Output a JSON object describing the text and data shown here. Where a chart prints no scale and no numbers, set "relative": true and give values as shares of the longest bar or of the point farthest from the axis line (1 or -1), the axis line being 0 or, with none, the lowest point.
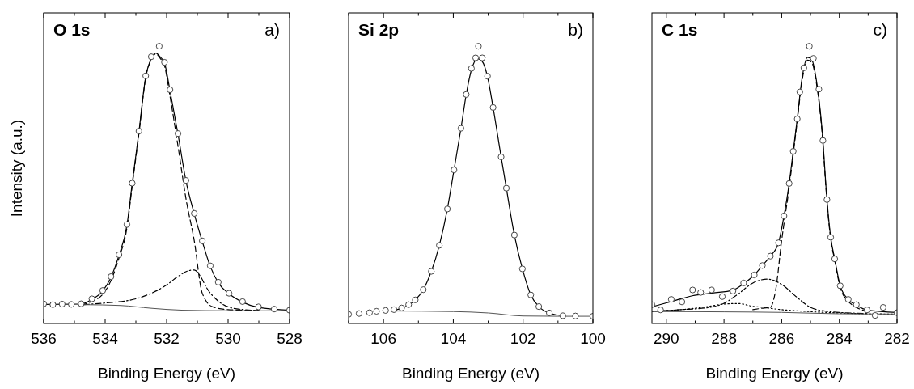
{
  "chart_data": [
    {
      "type": "line",
      "title": "O 1s",
      "ylabel": "Intensity (a.u.)",
      "xlabel": "Binding Energy (eV)",
      "annotations": [
        "a)"
      ],
      "relative": true,
      "xlim": [
        536,
        528
      ],
      "xticks": [
        536,
        {
          "value": 535,
          "label": null
        },
        534,
        {
          "value": 533,
          "label": null
        },
        532,
        {
          "value": 531,
          "label": null
        },
        530,
        {
          "value": 529,
          "label": null
        },
        528
      ],
      "series": [
        {
          "type": "scatter",
          "marker": "circle",
          "color": "#333333",
          "x": [
            536,
            535.7,
            535.4,
            535.1,
            534.78,
            534.43,
            534.08,
            533.81,
            533.55,
            533.29,
            533.12,
            532.9,
            532.68,
            532.5,
            532.24,
            532.07,
            531.89,
            531.63,
            531.37,
            531.1,
            530.84,
            530.58,
            530.32,
            529.97,
            529.53,
            529.01,
            528.5,
            528
          ],
          "values": [
            0.071,
            0.068,
            0.07,
            0.069,
            0.071,
            0.089,
            0.119,
            0.169,
            0.248,
            0.357,
            0.506,
            0.694,
            0.893,
            0.962,
            1.0,
            0.942,
            0.843,
            0.685,
            0.516,
            0.397,
            0.298,
            0.208,
            0.149,
            0.109,
            0.079,
            0.06,
            0.052,
            0.048
          ]
        },
        {
          "type": "line",
          "line_style": "solid",
          "color": "#000000",
          "x": [
            536,
            534.78,
            534.43,
            534.08,
            533.81,
            533.55,
            533.29,
            533.12,
            532.9,
            532.68,
            532.5,
            532.35,
            532.2,
            532.07,
            531.89,
            531.63,
            531.37,
            531.1,
            530.84,
            530.58,
            530.32,
            529.97,
            529.53,
            529.01,
            528
          ],
          "values": [
            0.069,
            0.07,
            0.087,
            0.117,
            0.167,
            0.246,
            0.355,
            0.504,
            0.692,
            0.89,
            0.955,
            0.975,
            0.96,
            0.94,
            0.84,
            0.683,
            0.514,
            0.395,
            0.296,
            0.206,
            0.147,
            0.107,
            0.077,
            0.058,
            0.048
          ]
        },
        {
          "type": "line",
          "line_style": "dashed",
          "color": "#000000",
          "x": [
            534.78,
            534.43,
            534.08,
            533.81,
            533.55,
            533.29,
            533.12,
            532.9,
            532.68,
            532.5,
            532.35,
            532.2,
            532.07,
            531.89,
            531.63,
            531.37,
            531.1,
            530.84,
            530.5,
            530,
            529.5,
            529
          ],
          "values": [
            0.066,
            0.08,
            0.105,
            0.155,
            0.236,
            0.346,
            0.496,
            0.686,
            0.886,
            0.952,
            0.972,
            0.955,
            0.93,
            0.82,
            0.64,
            0.45,
            0.298,
            0.109,
            0.06,
            0.05,
            0.048,
            0.047
          ]
        },
        {
          "type": "line",
          "line_style": "dashdot",
          "color": "#000000",
          "x": [
            534.7,
            534,
            533,
            532.5,
            532,
            531.6,
            531.3,
            531.1,
            530.9,
            530.7,
            530.3,
            530,
            529.5,
            529
          ],
          "values": [
            0.068,
            0.074,
            0.089,
            0.109,
            0.139,
            0.172,
            0.19,
            0.193,
            0.17,
            0.129,
            0.079,
            0.06,
            0.05,
            0.047
          ]
        },
        {
          "type": "line",
          "line_style": "solid",
          "color": "#555555",
          "x": [
            534.7,
            533.5,
            532.5,
            531.5,
            530,
            528
          ],
          "values": [
            0.068,
            0.065,
            0.055,
            0.048,
            0.046,
            0.046
          ]
        }
      ]
    },
    {
      "type": "line",
      "title": "Si 2p",
      "xlabel": "Binding Energy (eV)",
      "annotations": [
        "b)"
      ],
      "relative": true,
      "xlim": [
        107,
        100
      ],
      "xticks": [
        {
          "value": 107,
          "label": null
        },
        106,
        {
          "value": 105,
          "label": null
        },
        104,
        {
          "value": 103,
          "label": null
        },
        102,
        {
          "value": 101,
          "label": null
        },
        100
      ],
      "series": [
        {
          "type": "scatter",
          "marker": "circle",
          "color": "#333333",
          "x": [
            107,
            106.7,
            106.4,
            106.2,
            105.94,
            105.7,
            105.48,
            105.28,
            105.09,
            104.86,
            104.63,
            104.4,
            104.17,
            103.98,
            103.78,
            103.63,
            103.48,
            103.36,
            103.28,
            103.17,
            103.02,
            102.86,
            102.63,
            102.48,
            102.25,
            102.02,
            101.78,
            101.55,
            101.25,
            100.86,
            100.5,
            100
          ],
          "values": [
            0.033,
            0.036,
            0.039,
            0.044,
            0.047,
            0.05,
            0.056,
            0.068,
            0.085,
            0.122,
            0.188,
            0.282,
            0.413,
            0.554,
            0.704,
            0.826,
            0.92,
            0.958,
            1.0,
            0.958,
            0.892,
            0.779,
            0.601,
            0.488,
            0.319,
            0.197,
            0.103,
            0.061,
            0.038,
            0.028,
            0.027,
            0.026
          ]
        },
        {
          "type": "line",
          "line_style": "solid",
          "color": "#000000",
          "x": [
            105.7,
            105.48,
            105.28,
            105.09,
            104.86,
            104.63,
            104.4,
            104.17,
            103.98,
            103.78,
            103.63,
            103.48,
            103.3,
            103.17,
            103.02,
            102.86,
            102.63,
            102.48,
            102.25,
            102.02,
            101.78,
            101.55,
            101.25,
            100.86
          ],
          "values": [
            0.048,
            0.055,
            0.067,
            0.085,
            0.122,
            0.188,
            0.282,
            0.413,
            0.554,
            0.704,
            0.826,
            0.915,
            0.955,
            0.945,
            0.89,
            0.779,
            0.601,
            0.488,
            0.319,
            0.197,
            0.103,
            0.061,
            0.038,
            0.028
          ]
        },
        {
          "type": "line",
          "line_style": "solid",
          "color": "#555555",
          "x": [
            105.8,
            104,
            103,
            102,
            101,
            100
          ],
          "values": [
            0.045,
            0.043,
            0.038,
            0.027,
            0.026,
            0.026
          ]
        }
      ]
    },
    {
      "type": "line",
      "title": "C 1s",
      "xlabel": "Binding Energy (eV)",
      "annotations": [
        "c)"
      ],
      "relative": true,
      "xlim": [
        290.5,
        282
      ],
      "xticks": [
        290,
        {
          "value": 289,
          "label": null
        },
        288,
        {
          "value": 287,
          "label": null
        },
        286,
        {
          "value": 285,
          "label": null
        },
        284,
        {
          "value": 283,
          "label": null
        },
        282
      ],
      "series": [
        {
          "type": "scatter",
          "marker": "circle",
          "color": "#333333",
          "x": [
            290.5,
            290.2,
            289.83,
            289.46,
            289.09,
            288.81,
            288.43,
            288.06,
            287.69,
            287.32,
            286.95,
            286.67,
            286.39,
            286.11,
            285.92,
            285.74,
            285.6,
            285.46,
            285.37,
            285.23,
            285.04,
            284.9,
            284.71,
            284.57,
            284.43,
            284.3,
            284.16,
            283.97,
            283.69,
            283.41,
            283.04,
            282.76,
            282.48,
            282
          ],
          "values": [
            0.068,
            0.049,
            0.087,
            0.078,
            0.121,
            0.112,
            0.121,
            0.097,
            0.117,
            0.146,
            0.175,
            0.209,
            0.243,
            0.291,
            0.388,
            0.505,
            0.621,
            0.738,
            0.835,
            0.922,
            1.0,
            0.956,
            0.845,
            0.66,
            0.447,
            0.311,
            0.233,
            0.136,
            0.087,
            0.068,
            0.049,
            0.029,
            0.058,
            0.039
          ]
        },
        {
          "type": "line",
          "line_style": "solid",
          "color": "#000000",
          "x": [
            290.5,
            289.8,
            289.1,
            288.4,
            287.7,
            287.3,
            286.95,
            286.67,
            286.39,
            286.11,
            285.92,
            285.74,
            285.6,
            285.46,
            285.3,
            285.1,
            284.95,
            284.8,
            284.6,
            284.43,
            284.3,
            284.16,
            283.97,
            283.69,
            283.4,
            283,
            282
          ],
          "values": [
            0.06,
            0.08,
            0.1,
            0.11,
            0.12,
            0.145,
            0.175,
            0.209,
            0.243,
            0.291,
            0.388,
            0.505,
            0.621,
            0.738,
            0.88,
            0.96,
            0.95,
            0.88,
            0.7,
            0.447,
            0.311,
            0.233,
            0.136,
            0.087,
            0.065,
            0.048,
            0.04
          ]
        },
        {
          "type": "line",
          "line_style": "dashed",
          "color": "#000000",
          "x": [
            287,
            286.6,
            286.4,
            286.2,
            286,
            285.92,
            285.74,
            285.6,
            285.46,
            285.3,
            285.1,
            284.95,
            284.8,
            284.6,
            284.43,
            284.3,
            284.16,
            283.97,
            283.69,
            283.4,
            283
          ],
          "values": [
            0.05,
            0.056,
            0.058,
            0.126,
            0.3,
            0.36,
            0.49,
            0.61,
            0.73,
            0.87,
            0.95,
            0.94,
            0.87,
            0.69,
            0.44,
            0.305,
            0.228,
            0.13,
            0.08,
            0.058,
            0.042
          ]
        },
        {
          "type": "line",
          "line_style": "dashdot",
          "color": "#000000",
          "x": [
            290.5,
            289.5,
            288.5,
            288,
            287.5,
            287,
            286.5,
            286,
            285.5,
            285,
            284.5,
            284,
            283
          ],
          "values": [
            0.044,
            0.05,
            0.058,
            0.073,
            0.107,
            0.146,
            0.16,
            0.141,
            0.097,
            0.058,
            0.045,
            0.04,
            0.036
          ]
        },
        {
          "type": "line",
          "line_style": "dotted",
          "color": "#000000",
          "x": [
            290.5,
            289,
            288.5,
            288,
            287.5,
            287,
            286.6,
            286.2,
            285.5,
            284.5,
            283,
            282
          ],
          "values": [
            0.044,
            0.055,
            0.062,
            0.07,
            0.072,
            0.062,
            0.058,
            0.052,
            0.046,
            0.04,
            0.035,
            0.034
          ]
        },
        {
          "type": "line",
          "line_style": "solid",
          "color": "#555555",
          "x": [
            290.5,
            288,
            286,
            284,
            282
          ],
          "values": [
            0.043,
            0.042,
            0.04,
            0.035,
            0.034
          ]
        }
      ]
    }
  ]
}
